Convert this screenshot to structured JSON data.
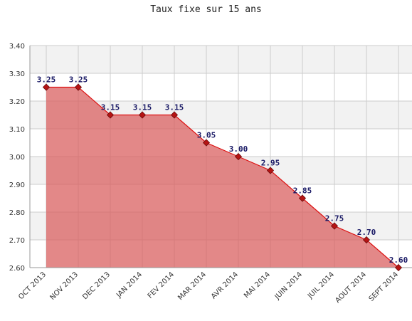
{
  "chart_data": {
    "type": "area",
    "title": "Taux fixe sur 15 ans",
    "categories": [
      "OCT 2013",
      "NOV 2013",
      "DEC 2013",
      "JAN 2014",
      "FEV 2014",
      "MAR 2014",
      "AVR 2014",
      "MAI 2014",
      "JUIN 2014",
      "JUIL 2014",
      "AOUT 2014",
      "SEPT 2014"
    ],
    "values": [
      3.25,
      3.25,
      3.15,
      3.15,
      3.15,
      3.05,
      3.0,
      2.95,
      2.85,
      2.75,
      2.7,
      2.6
    ],
    "data_labels": [
      "3.25",
      "3.25",
      "3.15",
      "3.15",
      "3.15",
      "3.05",
      "3.00",
      "2.95",
      "2.85",
      "2.75",
      "2.70",
      "2.60"
    ],
    "ylim": [
      2.6,
      3.4
    ],
    "yticks": [
      "2.60",
      "2.70",
      "2.80",
      "2.90",
      "3.00",
      "3.10",
      "3.20",
      "3.30",
      "3.40"
    ],
    "grid": true,
    "colors": {
      "fill": "#d96060",
      "line": "#dd1111",
      "marker": "#b51414",
      "band": "#f2f2f2",
      "grid": "#cccccc"
    }
  }
}
